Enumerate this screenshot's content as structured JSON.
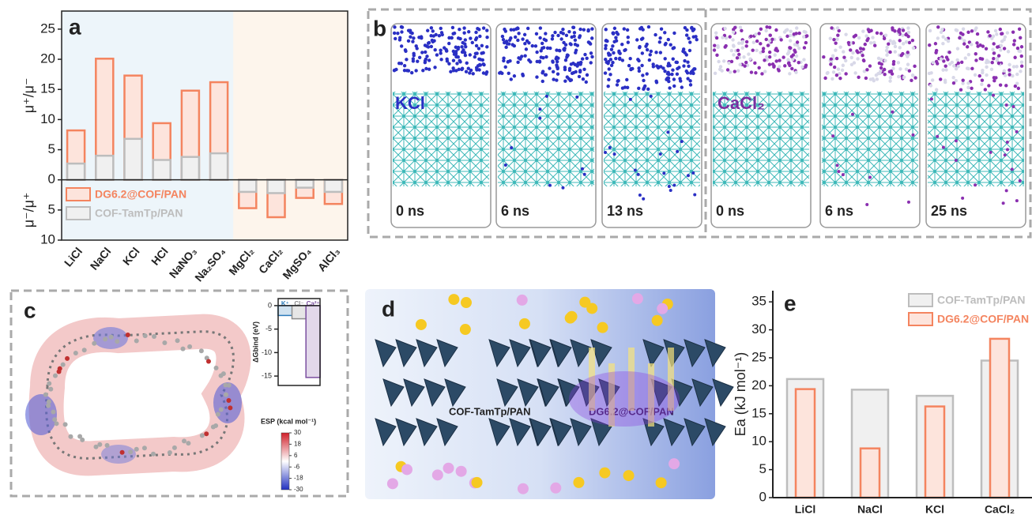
{
  "chart_data": [
    {
      "type": "bar",
      "ylabel": "μ⁺/μ⁻",
      "ylabel2": "μ⁻/μ⁺",
      "categories": [
        "LiCl",
        "NaCl",
        "KCl",
        "HCl",
        "NaNO₃",
        "Na₂SO₄",
        "MgCl₂",
        "CaCl₂",
        "MgSO₄",
        "AlCl₃"
      ],
      "series": [
        {
          "name": "DG6.2@COF/PAN",
          "color": "#f4845f",
          "values": [
            8.2,
            20.1,
            17.3,
            9.4,
            14.8,
            16.2,
            -4.7,
            -6.2,
            -3.0,
            -4.0
          ]
        },
        {
          "name": "COF-TamTp/PAN",
          "color": "#bdbdbd",
          "values": [
            2.7,
            4.0,
            6.8,
            3.3,
            3.8,
            4.4,
            -2.0,
            -2.2,
            -1.3,
            -2.0
          ]
        }
      ],
      "ylim": [
        -10,
        28
      ],
      "yticks": [
        {
          "value": -10,
          "label": "10"
        },
        {
          "value": -5,
          "label": "5"
        },
        0,
        5,
        10,
        15,
        20,
        25
      ],
      "legend": "lower left"
    },
    {
      "type": "bar",
      "ylabel": "ΔGbind (eV)",
      "categories": [
        "K⁺",
        "Cl⁻",
        "Ca²⁺"
      ],
      "values": [
        -2.1,
        -2.8,
        -15.3
      ],
      "colors": [
        "#2b7bba",
        "#8c8c8c",
        "#7b4fa0"
      ],
      "ylim": [
        -17,
        1.5
      ],
      "yticks": [
        0,
        -5,
        -10,
        -15
      ]
    },
    {
      "type": "bar",
      "ylabel": "Ea (kJ mol⁻¹)",
      "categories": [
        "LiCl",
        "NaCl",
        "KCl",
        "CaCl₂"
      ],
      "series": [
        {
          "name": "COF-TamTp/PAN",
          "color": "#bdbdbd",
          "values": [
            21.2,
            19.3,
            18.2,
            24.5
          ]
        },
        {
          "name": "DG6.2@COF/PAN",
          "color": "#f4845f",
          "values": [
            19.4,
            8.8,
            16.3,
            28.4
          ]
        }
      ],
      "ylim": [
        0,
        37
      ],
      "yticks": [
        0,
        5,
        10,
        15,
        20,
        25,
        30,
        35
      ],
      "legend": "upper right"
    }
  ],
  "panel_labels": [
    "a",
    "b",
    "c",
    "d",
    "e"
  ],
  "panel_b": {
    "salts": [
      "KCl",
      "CaCl₂"
    ],
    "times": [
      "0 ns",
      "6 ns",
      "13 ns",
      "0 ns",
      "6 ns",
      "25 ns"
    ]
  },
  "panel_c": {
    "esp_colorbar": {
      "label": "ESP (kcal  mol⁻¹)",
      "ticks": [
        30,
        18,
        6,
        -6,
        -18,
        -30
      ],
      "range": [
        -30,
        30
      ]
    }
  },
  "panel_d": {
    "labels": [
      "COF-TamTp/PAN",
      "DG6.2@COF/PAN"
    ]
  }
}
